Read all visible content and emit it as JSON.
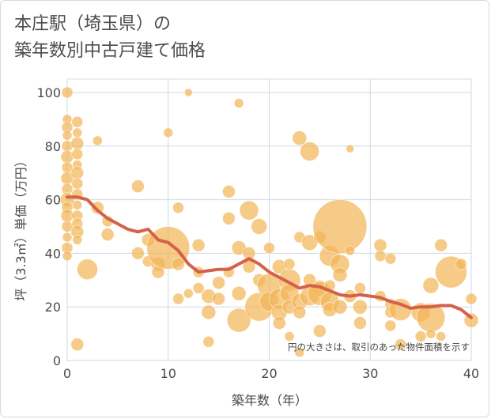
{
  "chart_data": {
    "type": "scatter",
    "title_line1": "本庄駅（埼玉県）の",
    "title_line2": "築年数別中古戸建て価格",
    "xlabel": "築年数（年）",
    "ylabel": "坪（3.3㎡）単価（万円）",
    "note": "円の大きさは、取引のあった物件面積を示す",
    "xlim": [
      0,
      40
    ],
    "ylim": [
      0,
      105
    ],
    "xticks": [
      "0",
      "10",
      "20",
      "30",
      "40"
    ],
    "yticks": [
      "0",
      "20",
      "40",
      "60",
      "80",
      "100"
    ],
    "bubble_color": "#f2b659",
    "line_color": "#d4614a",
    "grid": true,
    "points": [
      {
        "x": 0,
        "y": 100,
        "s": 7
      },
      {
        "x": 0,
        "y": 90,
        "s": 6
      },
      {
        "x": 0,
        "y": 87,
        "s": 7
      },
      {
        "x": 0,
        "y": 84,
        "s": 6
      },
      {
        "x": 0,
        "y": 80,
        "s": 7
      },
      {
        "x": 0,
        "y": 76,
        "s": 8
      },
      {
        "x": 0,
        "y": 72,
        "s": 7
      },
      {
        "x": 0,
        "y": 68,
        "s": 8
      },
      {
        "x": 0,
        "y": 64,
        "s": 7
      },
      {
        "x": 0,
        "y": 60,
        "s": 9
      },
      {
        "x": 0,
        "y": 57,
        "s": 7
      },
      {
        "x": 0,
        "y": 54,
        "s": 8
      },
      {
        "x": 0,
        "y": 50,
        "s": 7
      },
      {
        "x": 0,
        "y": 46,
        "s": 6
      },
      {
        "x": 0,
        "y": 42,
        "s": 7
      },
      {
        "x": 0,
        "y": 39,
        "s": 6
      },
      {
        "x": 1,
        "y": 89,
        "s": 7
      },
      {
        "x": 1,
        "y": 85,
        "s": 6
      },
      {
        "x": 1,
        "y": 81,
        "s": 8
      },
      {
        "x": 1,
        "y": 77,
        "s": 7
      },
      {
        "x": 1,
        "y": 73,
        "s": 6
      },
      {
        "x": 1,
        "y": 70,
        "s": 8
      },
      {
        "x": 1,
        "y": 66,
        "s": 7
      },
      {
        "x": 1,
        "y": 62,
        "s": 7
      },
      {
        "x": 1,
        "y": 58,
        "s": 6
      },
      {
        "x": 1,
        "y": 54,
        "s": 7
      },
      {
        "x": 1,
        "y": 51,
        "s": 7
      },
      {
        "x": 1,
        "y": 48,
        "s": 8
      },
      {
        "x": 1,
        "y": 45,
        "s": 6
      },
      {
        "x": 1,
        "y": 6,
        "s": 8
      },
      {
        "x": 2,
        "y": 34,
        "s": 13
      },
      {
        "x": 3,
        "y": 82,
        "s": 6
      },
      {
        "x": 3,
        "y": 57,
        "s": 8
      },
      {
        "x": 4,
        "y": 52,
        "s": 7
      },
      {
        "x": 4,
        "y": 47,
        "s": 8
      },
      {
        "x": 7,
        "y": 65,
        "s": 8
      },
      {
        "x": 7,
        "y": 40,
        "s": 8
      },
      {
        "x": 8,
        "y": 37,
        "s": 7
      },
      {
        "x": 8,
        "y": 45,
        "s": 8
      },
      {
        "x": 9,
        "y": 36,
        "s": 9
      },
      {
        "x": 9,
        "y": 33,
        "s": 8
      },
      {
        "x": 10,
        "y": 85,
        "s": 6
      },
      {
        "x": 10,
        "y": 42,
        "s": 27
      },
      {
        "x": 11,
        "y": 57,
        "s": 7
      },
      {
        "x": 11,
        "y": 36,
        "s": 8
      },
      {
        "x": 11,
        "y": 23,
        "s": 7
      },
      {
        "x": 12,
        "y": 100,
        "s": 5
      },
      {
        "x": 12,
        "y": 25,
        "s": 6
      },
      {
        "x": 13,
        "y": 43,
        "s": 8
      },
      {
        "x": 13,
        "y": 33,
        "s": 7
      },
      {
        "x": 13,
        "y": 27,
        "s": 7
      },
      {
        "x": 14,
        "y": 24,
        "s": 9
      },
      {
        "x": 14,
        "y": 18,
        "s": 9
      },
      {
        "x": 14,
        "y": 7,
        "s": 7
      },
      {
        "x": 15,
        "y": 29,
        "s": 8
      },
      {
        "x": 15,
        "y": 23,
        "s": 8
      },
      {
        "x": 16,
        "y": 63,
        "s": 8
      },
      {
        "x": 16,
        "y": 53,
        "s": 8
      },
      {
        "x": 16,
        "y": 33,
        "s": 7
      },
      {
        "x": 17,
        "y": 96,
        "s": 6
      },
      {
        "x": 17,
        "y": 42,
        "s": 9
      },
      {
        "x": 17,
        "y": 25,
        "s": 9
      },
      {
        "x": 17,
        "y": 15,
        "s": 15
      },
      {
        "x": 18,
        "y": 56,
        "s": 12
      },
      {
        "x": 18,
        "y": 40,
        "s": 8
      },
      {
        "x": 18,
        "y": 35,
        "s": 8
      },
      {
        "x": 19,
        "y": 50,
        "s": 10
      },
      {
        "x": 19,
        "y": 30,
        "s": 8
      },
      {
        "x": 19,
        "y": 20,
        "s": 18
      },
      {
        "x": 20,
        "y": 42,
        "s": 7
      },
      {
        "x": 20,
        "y": 28,
        "s": 15
      },
      {
        "x": 20,
        "y": 22,
        "s": 12
      },
      {
        "x": 21,
        "y": 35,
        "s": 9
      },
      {
        "x": 21,
        "y": 23,
        "s": 13
      },
      {
        "x": 21,
        "y": 18,
        "s": 10
      },
      {
        "x": 21,
        "y": 14,
        "s": 8
      },
      {
        "x": 22,
        "y": 36,
        "s": 7
      },
      {
        "x": 22,
        "y": 30,
        "s": 14
      },
      {
        "x": 22,
        "y": 25,
        "s": 12
      },
      {
        "x": 22,
        "y": 20,
        "s": 9
      },
      {
        "x": 22,
        "y": 9,
        "s": 6
      },
      {
        "x": 23,
        "y": 83,
        "s": 9
      },
      {
        "x": 23,
        "y": 46,
        "s": 7
      },
      {
        "x": 23,
        "y": 22,
        "s": 10
      },
      {
        "x": 23,
        "y": 18,
        "s": 8
      },
      {
        "x": 23,
        "y": 3,
        "s": 6
      },
      {
        "x": 24,
        "y": 78,
        "s": 12
      },
      {
        "x": 24,
        "y": 44,
        "s": 10
      },
      {
        "x": 24,
        "y": 30,
        "s": 8
      },
      {
        "x": 24,
        "y": 24,
        "s": 12
      },
      {
        "x": 25,
        "y": 46,
        "s": 8
      },
      {
        "x": 25,
        "y": 27,
        "s": 10
      },
      {
        "x": 25,
        "y": 25,
        "s": 15
      },
      {
        "x": 25,
        "y": 11,
        "s": 8
      },
      {
        "x": 26,
        "y": 39,
        "s": 13
      },
      {
        "x": 26,
        "y": 28,
        "s": 7
      },
      {
        "x": 26,
        "y": 22,
        "s": 12
      },
      {
        "x": 26,
        "y": 19,
        "s": 9
      },
      {
        "x": 27,
        "y": 50,
        "s": 34
      },
      {
        "x": 27,
        "y": 36,
        "s": 12
      },
      {
        "x": 27,
        "y": 32,
        "s": 9
      },
      {
        "x": 27,
        "y": 20,
        "s": 9
      },
      {
        "x": 28,
        "y": 79,
        "s": 5
      },
      {
        "x": 28,
        "y": 41,
        "s": 6
      },
      {
        "x": 28,
        "y": 24,
        "s": 8
      },
      {
        "x": 29,
        "y": 27,
        "s": 7
      },
      {
        "x": 29,
        "y": 20,
        "s": 9
      },
      {
        "x": 29,
        "y": 14,
        "s": 8
      },
      {
        "x": 31,
        "y": 43,
        "s": 8
      },
      {
        "x": 31,
        "y": 39,
        "s": 7
      },
      {
        "x": 31,
        "y": 24,
        "s": 7
      },
      {
        "x": 32,
        "y": 38,
        "s": 7
      },
      {
        "x": 32,
        "y": 21,
        "s": 7
      },
      {
        "x": 32,
        "y": 18,
        "s": 7
      },
      {
        "x": 32,
        "y": 13,
        "s": 7
      },
      {
        "x": 33,
        "y": 19,
        "s": 14
      },
      {
        "x": 33,
        "y": 6,
        "s": 7
      },
      {
        "x": 35,
        "y": 18,
        "s": 12
      },
      {
        "x": 35,
        "y": 9,
        "s": 7
      },
      {
        "x": 36,
        "y": 28,
        "s": 10
      },
      {
        "x": 36,
        "y": 16,
        "s": 18
      },
      {
        "x": 36,
        "y": 10,
        "s": 6
      },
      {
        "x": 37,
        "y": 43,
        "s": 8
      },
      {
        "x": 37,
        "y": 9,
        "s": 6
      },
      {
        "x": 38,
        "y": 33,
        "s": 20
      },
      {
        "x": 39,
        "y": 36,
        "s": 7
      },
      {
        "x": 40,
        "y": 23,
        "s": 7
      },
      {
        "x": 40,
        "y": 15,
        "s": 9
      }
    ],
    "trend": [
      {
        "x": 0,
        "y": 61
      },
      {
        "x": 1,
        "y": 61
      },
      {
        "x": 2,
        "y": 60
      },
      {
        "x": 3,
        "y": 56
      },
      {
        "x": 4,
        "y": 53
      },
      {
        "x": 5,
        "y": 51
      },
      {
        "x": 6,
        "y": 49
      },
      {
        "x": 7,
        "y": 48
      },
      {
        "x": 8,
        "y": 49
      },
      {
        "x": 9,
        "y": 45
      },
      {
        "x": 10,
        "y": 44
      },
      {
        "x": 11,
        "y": 41
      },
      {
        "x": 12,
        "y": 36
      },
      {
        "x": 13,
        "y": 33
      },
      {
        "x": 14,
        "y": 33.5
      },
      {
        "x": 15,
        "y": 34
      },
      {
        "x": 16,
        "y": 34
      },
      {
        "x": 17,
        "y": 36
      },
      {
        "x": 18,
        "y": 38
      },
      {
        "x": 19,
        "y": 36
      },
      {
        "x": 20,
        "y": 33
      },
      {
        "x": 21,
        "y": 31
      },
      {
        "x": 22,
        "y": 29
      },
      {
        "x": 23,
        "y": 27
      },
      {
        "x": 24,
        "y": 28
      },
      {
        "x": 25,
        "y": 27.5
      },
      {
        "x": 26,
        "y": 26
      },
      {
        "x": 27,
        "y": 24.5
      },
      {
        "x": 28,
        "y": 24
      },
      {
        "x": 29,
        "y": 24.5
      },
      {
        "x": 30,
        "y": 24
      },
      {
        "x": 31,
        "y": 23.5
      },
      {
        "x": 32,
        "y": 22
      },
      {
        "x": 33,
        "y": 21
      },
      {
        "x": 34,
        "y": 19.5
      },
      {
        "x": 35,
        "y": 20
      },
      {
        "x": 36,
        "y": 20
      },
      {
        "x": 37,
        "y": 20.5
      },
      {
        "x": 38,
        "y": 20.5
      },
      {
        "x": 39,
        "y": 19
      },
      {
        "x": 40,
        "y": 16
      }
    ]
  }
}
